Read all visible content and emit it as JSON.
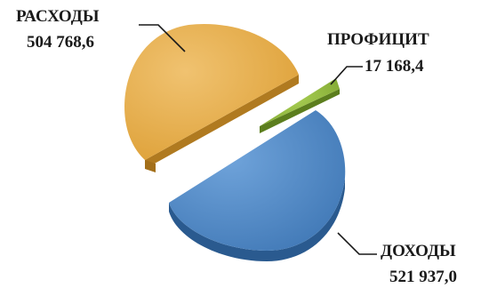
{
  "chart_data": {
    "type": "pie",
    "style": "3d-exploded",
    "title": "",
    "slices": [
      {
        "label": "РАСХОДЫ",
        "value_label": "504 768,6",
        "value": 504768.6,
        "color": "#e3a944",
        "side_color": "#b07a20"
      },
      {
        "label": "ПРОФИЦИТ",
        "value_label": "17 168,4",
        "value": 17168.4,
        "color": "#8bb43a",
        "side_color": "#5c7e1e"
      },
      {
        "label": "ДОХОДЫ",
        "value_label": "521 937,0",
        "value": 521937.0,
        "color": "#4d86c3",
        "side_color": "#2a5a8f"
      }
    ],
    "legend": "none"
  }
}
